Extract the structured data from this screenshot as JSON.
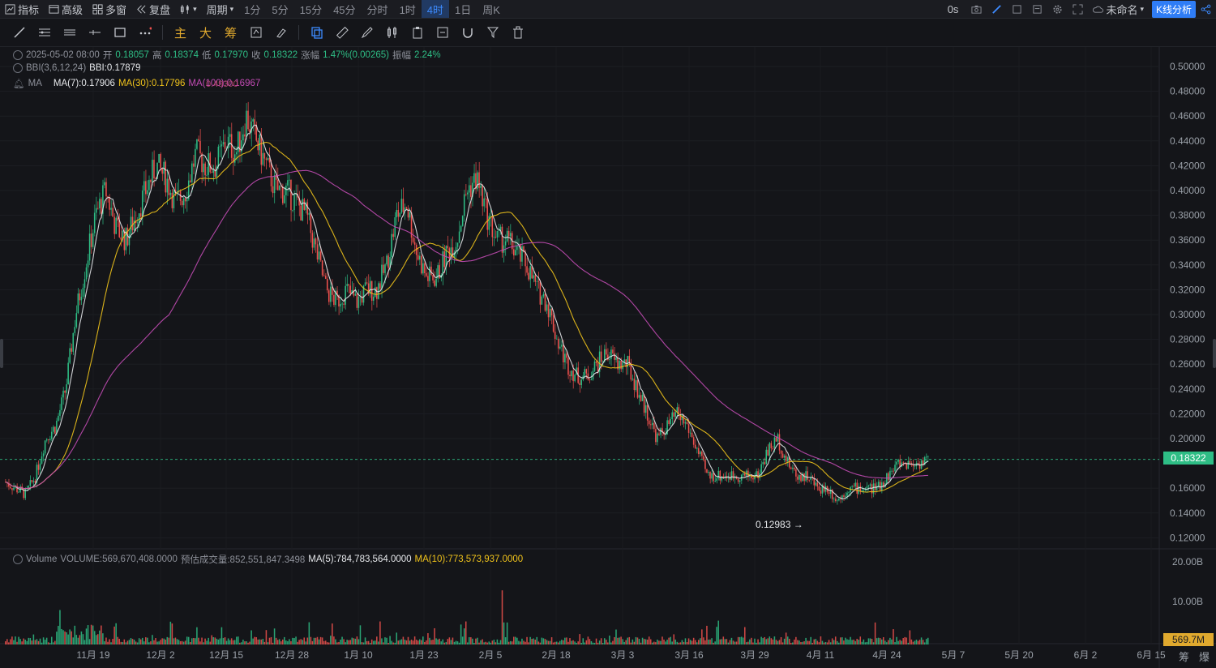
{
  "toolbar": {
    "indicators": "指标",
    "advanced": "高级",
    "multi_window": "多窗",
    "replay": "复盘",
    "period_label": "周期",
    "periods": [
      "1分",
      "5分",
      "15分",
      "45分",
      "分时",
      "1时",
      "4时",
      "1日",
      "周K"
    ],
    "active_period": "4时",
    "delay": "0s",
    "layout_name": "未命名",
    "kline_analysis": "K线分析"
  },
  "drawtools": {
    "main": "主",
    "big": "大",
    "chips": "筹"
  },
  "legend": {
    "date": "2025-05-02 08:00",
    "open_label": "开",
    "open": "0.18057",
    "high_label": "高",
    "high": "0.18374",
    "low_label": "低",
    "low": "0.17970",
    "close_label": "收",
    "close": "0.18322",
    "change_label": "涨幅",
    "change": "1.47%(0.00265)",
    "amp_label": "振幅",
    "amp": "2.24%",
    "bbi_name": "BBI(3,6,12,24)",
    "bbi_value": "BBI:0.17879",
    "ma_name": "MA",
    "ma7": "MA(7):0.17906",
    "ma30": "MA(30):0.17796",
    "ma100": "MA(100):0.16967",
    "ma_overlap": "0.49300",
    "vol_name": "Volume",
    "vol_value": "VOLUME:569,670,408.0000",
    "vol_est": "预估成交量:852,551,847.3498",
    "vol_ma5": "MA(5):784,783,564.0000",
    "vol_ma10": "MA(10):773,573,937.0000"
  },
  "price_axis": [
    "0.50000",
    "0.48000",
    "0.46000",
    "0.44000",
    "0.42000",
    "0.40000",
    "0.38000",
    "0.36000",
    "0.34000",
    "0.32000",
    "0.30000",
    "0.28000",
    "0.26000",
    "0.24000",
    "0.22000",
    "0.20000",
    "0.16000",
    "0.14000",
    "0.12000"
  ],
  "current_price": "0.18322",
  "volume_axis": [
    "20.00B",
    "10.00B"
  ],
  "current_volume": "569.7M",
  "low_marker": "0.12983 →",
  "time_axis": [
    "11月 19",
    "12月 2",
    "12月 15",
    "12月 28",
    "1月 10",
    "1月 23",
    "2月 5",
    "2月 18",
    "3月 3",
    "3月 16",
    "3月 29",
    "4月 11",
    "4月 24",
    "5月 7",
    "5月 20",
    "6月 2",
    "6月 15"
  ],
  "bottom_right": [
    "筹",
    "爆"
  ],
  "colors": {
    "up": "#2ebd85",
    "down": "#f0514e",
    "ma7": "#e6e8eb",
    "ma30": "#f0c31b",
    "ma100": "#c24bb4",
    "accent": "#2f7df6"
  },
  "chart_data": {
    "type": "candlestick",
    "ylim": [
      0.11,
      0.51
    ],
    "close_path": [
      0.165,
      0.16,
      0.155,
      0.17,
      0.2,
      0.21,
      0.24,
      0.3,
      0.34,
      0.38,
      0.4,
      0.37,
      0.36,
      0.38,
      0.4,
      0.42,
      0.41,
      0.39,
      0.4,
      0.43,
      0.42,
      0.42,
      0.44,
      0.43,
      0.46,
      0.44,
      0.42,
      0.4,
      0.4,
      0.39,
      0.38,
      0.35,
      0.32,
      0.31,
      0.32,
      0.31,
      0.32,
      0.32,
      0.34,
      0.38,
      0.39,
      0.35,
      0.33,
      0.33,
      0.35,
      0.36,
      0.4,
      0.41,
      0.38,
      0.36,
      0.36,
      0.35,
      0.34,
      0.32,
      0.31,
      0.28,
      0.26,
      0.25,
      0.25,
      0.26,
      0.27,
      0.26,
      0.26,
      0.24,
      0.22,
      0.2,
      0.21,
      0.22,
      0.21,
      0.19,
      0.17,
      0.17,
      0.17,
      0.17,
      0.17,
      0.17,
      0.19,
      0.2,
      0.18,
      0.17,
      0.17,
      0.16,
      0.16,
      0.15,
      0.16,
      0.16,
      0.16,
      0.16,
      0.17,
      0.18,
      0.18,
      0.18,
      0.183
    ],
    "low": 0.12983
  }
}
